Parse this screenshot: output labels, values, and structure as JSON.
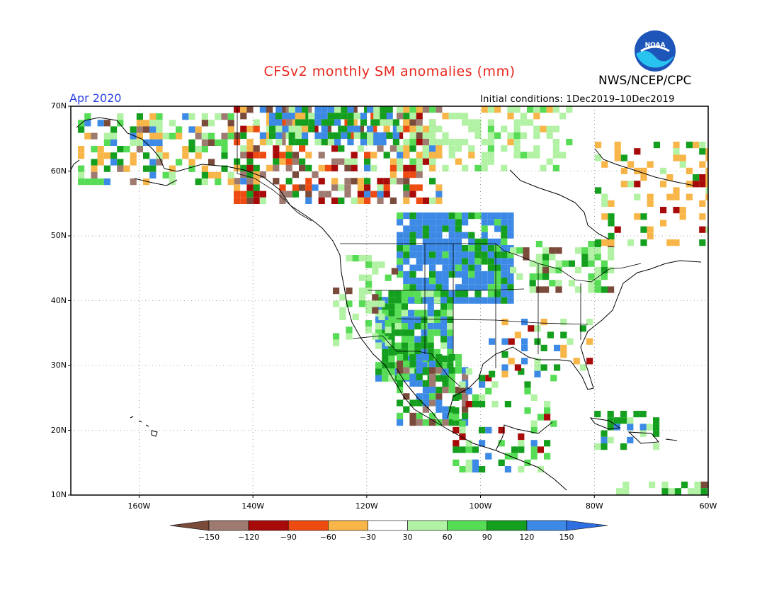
{
  "title": "CFSv2 monthly SM anomalies (mm)",
  "valid_label": "Apr 2020",
  "initial_conditions": "Initial conditions: 1Dec2019–10Dec2019",
  "agency": "NWS/NCEP/CPC",
  "logo_text": "NOAA",
  "map": {
    "lon_range": [
      -172,
      -60
    ],
    "lat_range": [
      10,
      70
    ],
    "lat_ticks": [
      "70N",
      "60N",
      "50N",
      "40N",
      "30N",
      "20N",
      "10N"
    ],
    "lon_ticks": [
      "160W",
      "140W",
      "120W",
      "100W",
      "80W",
      "60W"
    ],
    "grid": "dotted"
  },
  "colorbar": {
    "ticks": [
      "−150",
      "−120",
      "−90",
      "−60",
      "−30",
      "30",
      "60",
      "90",
      "120",
      "150"
    ],
    "colors": [
      "#7a4a3a",
      "#9f7a70",
      "#a80a0a",
      "#ee4b12",
      "#f8b548",
      "#ffffff",
      "#b2f2a4",
      "#57dc55",
      "#14a01e",
      "#3c8ae6",
      "#2d6fe0"
    ]
  }
}
